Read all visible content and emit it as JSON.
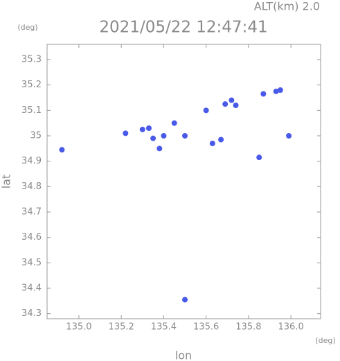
{
  "chart_data": {
    "type": "scatter",
    "title": "2021/05/22 12:47:41",
    "subtitle": "ALT(km) 2.0",
    "x_unit": "(deg)",
    "y_unit": "(deg)",
    "x_label": "lon",
    "y_label": "lat",
    "xlim": [
      134.85,
      136.14
    ],
    "ylim": [
      34.28,
      35.36
    ],
    "xticks": [
      {
        "value": 135,
        "label": "135.0"
      },
      135.2,
      135.4,
      135.6,
      135.8,
      {
        "value": 136,
        "label": "136.0"
      }
    ],
    "yticks": [
      34.3,
      34.4,
      34.5,
      34.6,
      34.7,
      34.8,
      34.9,
      35.0,
      35.1,
      35.2,
      35.3
    ],
    "color": "#4a5ae8",
    "x": [
      134.92,
      135.72,
      135.74,
      135.69,
      135.93,
      135.95,
      135.87,
      135.3,
      135.33,
      135.45,
      135.5,
      135.38,
      135.63,
      135.67,
      135.85,
      135.99,
      135.6,
      135.4,
      135.5,
      135.22,
      135.35
    ],
    "values": [
      34.945,
      35.14,
      35.12,
      35.125,
      35.175,
      35.18,
      35.165,
      35.025,
      35.03,
      35.05,
      35.0,
      34.95,
      34.97,
      34.985,
      34.915,
      35.0,
      35.1,
      35.0,
      34.355,
      35.01,
      34.99
    ]
  }
}
